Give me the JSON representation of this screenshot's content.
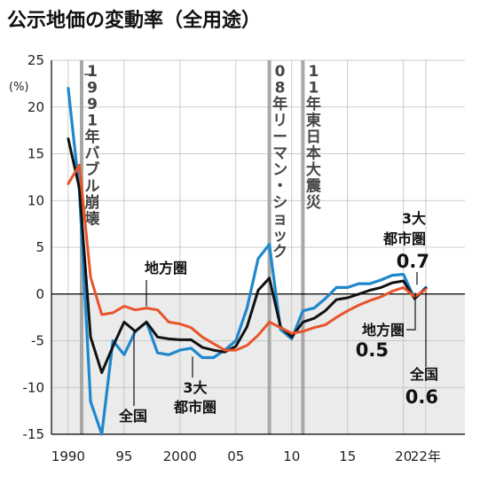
{
  "title": "公示地価の変動率（全用途）",
  "chart_data": {
    "type": "line",
    "unit": "(%)",
    "year_label": "年",
    "x_ticks": [
      {
        "year": 1990,
        "label": "1990"
      },
      {
        "year": 1995,
        "label": "95"
      },
      {
        "year": 2000,
        "label": "2000"
      },
      {
        "year": 2005,
        "label": "05"
      },
      {
        "year": 2010,
        "label": "10"
      },
      {
        "year": 2015,
        "label": "15"
      },
      {
        "year": 2020,
        "label": "20"
      },
      {
        "year": 2022,
        "label": "22"
      }
    ],
    "y_ticks": [
      25,
      20,
      15,
      10,
      5,
      0,
      -5,
      -10,
      -15
    ],
    "xlim": [
      1988.5,
      2025.5
    ],
    "ylim": [
      -15,
      25
    ],
    "events": [
      {
        "year": 1991.2,
        "lines": [
          "1",
          "9",
          "9",
          "1",
          "年",
          "バ",
          "ブ",
          "ル",
          "崩",
          "壊"
        ]
      },
      {
        "year": 2008,
        "lines": [
          "0",
          "8",
          "年",
          "リ",
          "ー",
          "マ",
          "ン",
          "・",
          "シ",
          "ョ",
          "ッ",
          "ク"
        ]
      },
      {
        "year": 2011,
        "lines": [
          "1",
          "1",
          "年",
          "東",
          "日",
          "本",
          "大",
          "震",
          "災"
        ]
      }
    ],
    "series": [
      {
        "name": "3大都市圏",
        "label_lines": [
          "3大",
          "都市圏"
        ],
        "latest": "0.7",
        "color": "#1e88cc",
        "values": [
          [
            1990,
            22.0
          ],
          [
            1991,
            11.0
          ],
          [
            1992,
            -11.5
          ],
          [
            1993,
            -15.0
          ],
          [
            1994,
            -5.0
          ],
          [
            1995,
            -6.5
          ],
          [
            1996,
            -4.0
          ],
          [
            1997,
            -3.0
          ],
          [
            1998,
            -6.3
          ],
          [
            1999,
            -6.5
          ],
          [
            2000,
            -6.0
          ],
          [
            2001,
            -5.8
          ],
          [
            2002,
            -6.8
          ],
          [
            2003,
            -6.8
          ],
          [
            2004,
            -6.0
          ],
          [
            2005,
            -5.0
          ],
          [
            2006,
            -1.5
          ],
          [
            2007,
            3.8
          ],
          [
            2008,
            5.3
          ],
          [
            2009,
            -3.8
          ],
          [
            2010,
            -4.8
          ],
          [
            2011,
            -1.8
          ],
          [
            2012,
            -1.5
          ],
          [
            2013,
            -0.5
          ],
          [
            2014,
            0.7
          ],
          [
            2015,
            0.7
          ],
          [
            2016,
            1.1
          ],
          [
            2017,
            1.1
          ],
          [
            2018,
            1.5
          ],
          [
            2019,
            2.0
          ],
          [
            2020,
            2.1
          ],
          [
            2021,
            -0.5
          ],
          [
            2022,
            0.7
          ]
        ]
      },
      {
        "name": "全国",
        "label_lines": [
          "全国"
        ],
        "latest": "0.6",
        "color": "#111111",
        "values": [
          [
            1990,
            16.6
          ],
          [
            1991,
            11.3
          ],
          [
            1992,
            -4.6
          ],
          [
            1993,
            -8.4
          ],
          [
            1994,
            -5.6
          ],
          [
            1995,
            -3.0
          ],
          [
            1996,
            -4.0
          ],
          [
            1997,
            -3.0
          ],
          [
            1998,
            -4.6
          ],
          [
            1999,
            -4.8
          ],
          [
            2000,
            -4.9
          ],
          [
            2001,
            -4.9
          ],
          [
            2002,
            -5.7
          ],
          [
            2003,
            -6.0
          ],
          [
            2004,
            -6.2
          ],
          [
            2005,
            -5.6
          ],
          [
            2006,
            -3.5
          ],
          [
            2007,
            0.4
          ],
          [
            2008,
            1.7
          ],
          [
            2009,
            -3.5
          ],
          [
            2010,
            -4.6
          ],
          [
            2011,
            -3.0
          ],
          [
            2012,
            -2.6
          ],
          [
            2013,
            -1.8
          ],
          [
            2014,
            -0.6
          ],
          [
            2015,
            -0.4
          ],
          [
            2016,
            0.0
          ],
          [
            2017,
            0.4
          ],
          [
            2018,
            0.7
          ],
          [
            2019,
            1.2
          ],
          [
            2020,
            1.4
          ],
          [
            2021,
            -0.5
          ],
          [
            2022,
            0.6
          ]
        ]
      },
      {
        "name": "地方圏",
        "label_lines": [
          "地方圏"
        ],
        "latest": "0.5",
        "color": "#e8542a",
        "values": [
          [
            1990,
            11.8
          ],
          [
            1991,
            13.8
          ],
          [
            1992,
            1.8
          ],
          [
            1993,
            -2.2
          ],
          [
            1994,
            -2.0
          ],
          [
            1995,
            -1.3
          ],
          [
            1996,
            -1.7
          ],
          [
            1997,
            -1.5
          ],
          [
            1998,
            -1.7
          ],
          [
            1999,
            -3.0
          ],
          [
            2000,
            -3.2
          ],
          [
            2001,
            -3.6
          ],
          [
            2002,
            -4.6
          ],
          [
            2003,
            -5.3
          ],
          [
            2004,
            -6.0
          ],
          [
            2005,
            -6.0
          ],
          [
            2006,
            -5.5
          ],
          [
            2007,
            -4.4
          ],
          [
            2008,
            -3.0
          ],
          [
            2009,
            -3.6
          ],
          [
            2010,
            -4.2
          ],
          [
            2011,
            -4.0
          ],
          [
            2012,
            -3.6
          ],
          [
            2013,
            -3.3
          ],
          [
            2014,
            -2.5
          ],
          [
            2015,
            -1.8
          ],
          [
            2016,
            -1.2
          ],
          [
            2017,
            -0.7
          ],
          [
            2018,
            -0.3
          ],
          [
            2019,
            0.3
          ],
          [
            2020,
            0.7
          ],
          [
            2021,
            -0.3
          ],
          [
            2022,
            0.5
          ]
        ]
      }
    ]
  }
}
